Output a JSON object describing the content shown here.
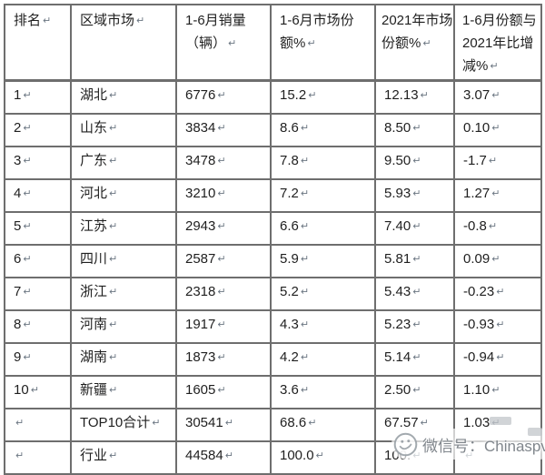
{
  "chart_data": {
    "type": "table",
    "title": "",
    "columns": [
      "排名",
      "区域市场",
      "1-6月销量（辆）",
      "1-6月市场份额%",
      "2021年市场份额%",
      "1-6月份额与2021年比增减%"
    ],
    "rows": [
      [
        "1",
        "湖北",
        "6776",
        "15.2",
        "12.13",
        "3.07"
      ],
      [
        "2",
        "山东",
        "3834",
        "8.6",
        "8.50",
        "0.10"
      ],
      [
        "3",
        "广东",
        "3478",
        "7.8",
        "9.50",
        "-1.7"
      ],
      [
        "4",
        "河北",
        "3210",
        "7.2",
        "5.93",
        "1.27"
      ],
      [
        "5",
        "江苏",
        "2943",
        "6.6",
        "7.40",
        "-0.8"
      ],
      [
        "6",
        "四川",
        "2587",
        "5.9",
        "5.81",
        "0.09"
      ],
      [
        "7",
        "浙江",
        "2318",
        "5.2",
        "5.43",
        "-0.23"
      ],
      [
        "8",
        "河南",
        "1917",
        "4.3",
        "5.23",
        "-0.93"
      ],
      [
        "9",
        "湖南",
        "1873",
        "4.2",
        "5.14",
        "-0.94"
      ],
      [
        "10",
        "新疆",
        "1605",
        "3.6",
        "2.50",
        "1.10"
      ],
      [
        "",
        "TOP10合计",
        "30541",
        "68.6",
        "67.57",
        "1.03"
      ],
      [
        "",
        "行业",
        "44584",
        "100.0",
        "100.",
        ""
      ]
    ]
  },
  "marks": {
    "paragraph_mark": "↵"
  },
  "watermark": {
    "label": "微信号：Chinaspv",
    "icon": "wechat-badge-icon"
  },
  "colors": {
    "border": "#6e6e6e",
    "text": "#1f1f1f",
    "watermark_text": "#80868c",
    "background": "#ffffff"
  }
}
